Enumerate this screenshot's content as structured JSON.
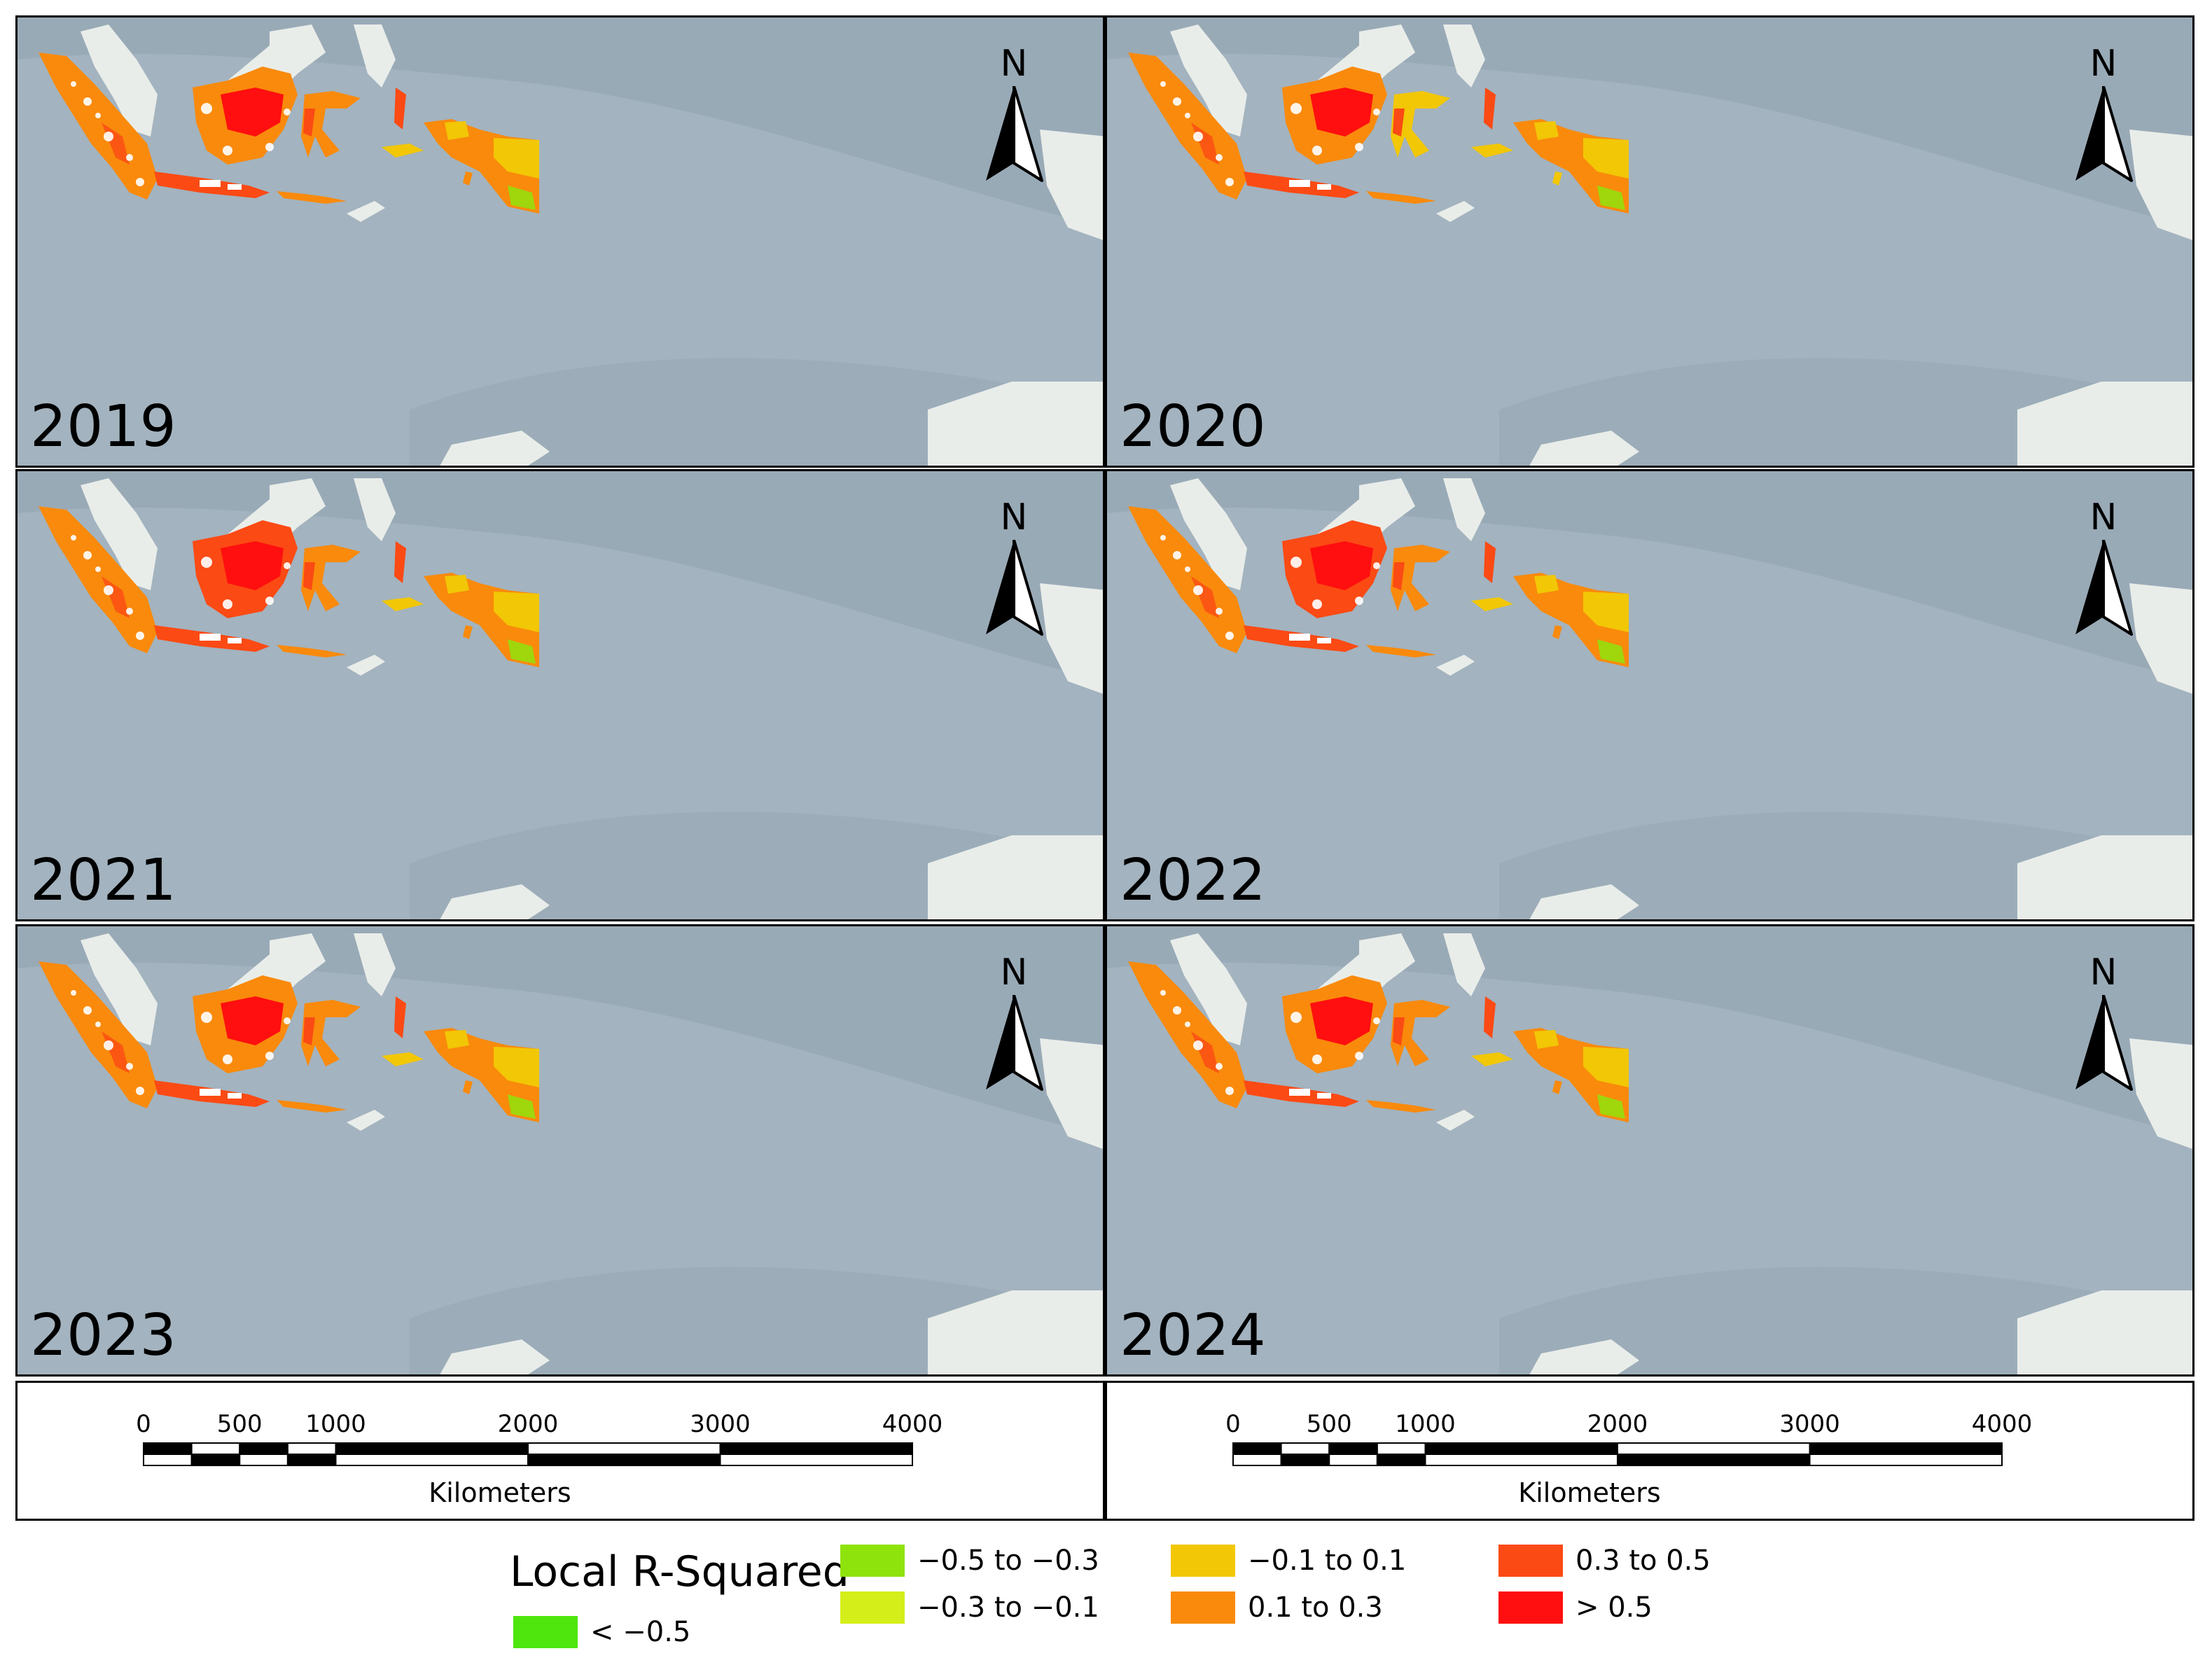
{
  "panels": [
    {
      "year": "2019"
    },
    {
      "year": "2020"
    },
    {
      "year": "2021"
    },
    {
      "year": "2022"
    },
    {
      "year": "2023"
    },
    {
      "year": "2024"
    }
  ],
  "north_arrow": {
    "label": "N"
  },
  "scale_bar": {
    "ticks": [
      "0",
      "500",
      "1000",
      "2000",
      "3000",
      "4000"
    ],
    "unit": "Kilometers"
  },
  "legend": {
    "title": "Local R-Squared",
    "items": [
      {
        "label": "< −0.5",
        "color": "#4ee60c"
      },
      {
        "label": "−0.5 to −0.3",
        "color": "#8fe30d"
      },
      {
        "label": "−0.3 to −0.1",
        "color": "#d4ee1a"
      },
      {
        "label": "−0.1 to 0.1",
        "color": "#f2c705"
      },
      {
        "label": "0.1 to 0.3",
        "color": "#f98a0c"
      },
      {
        "label": "0.3 to 0.5",
        "color": "#fb4a14"
      },
      {
        "label": "> 0.5",
        "color": "#ff0f0f"
      }
    ]
  },
  "colors": {
    "ocean": "#a3b3bf",
    "ocean_dark": "#8fa0ad",
    "landmass": "#e9ede9",
    "no_data_land": "#ffffff"
  }
}
